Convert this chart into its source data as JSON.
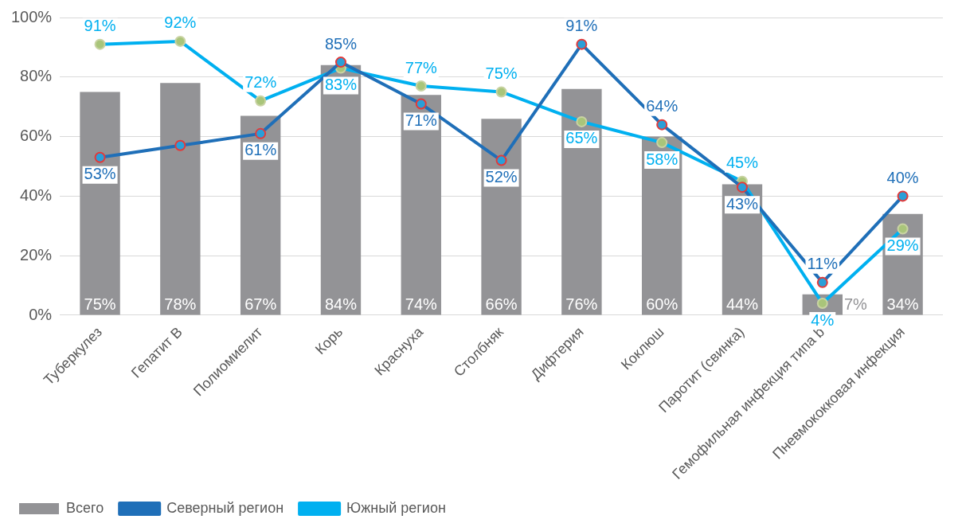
{
  "chart_data": {
    "type": "bar",
    "categories": [
      "Туберкулез",
      "Гепатит B",
      "Полиомиелит",
      "Корь",
      "Краснуха",
      "Столбняк",
      "Дифтерия",
      "Коклюш",
      "Паротит (свинка)",
      "Гемофильная инфекция типа b",
      "Пневмококковая инфекция"
    ],
    "series": [
      {
        "name": "Всего",
        "color": "#939396",
        "values": [
          75,
          78,
          67,
          84,
          74,
          66,
          76,
          60,
          44,
          7,
          34
        ],
        "value_labels": [
          "75%",
          "78%",
          "67%",
          "84%",
          "74%",
          "66%",
          "76%",
          "60%",
          "44%",
          "7%",
          "34%"
        ]
      },
      {
        "name": "Северный регион",
        "type": "line",
        "color": "#1f6fb8",
        "values": [
          53,
          57,
          61,
          85,
          71,
          52,
          91,
          64,
          43,
          11,
          40
        ],
        "value_labels": [
          "53%",
          null,
          "61%",
          "85%",
          "71%",
          "52%",
          "91%",
          "64%",
          "43%",
          "11%",
          "40%"
        ]
      },
      {
        "name": "Южный регион",
        "type": "line",
        "color": "#00b0f0",
        "values": [
          91,
          92,
          72,
          83,
          77,
          75,
          65,
          58,
          45,
          4,
          29
        ],
        "value_labels": [
          "91%",
          "92%",
          "72%",
          "83%",
          "77%",
          "75%",
          "65%",
          "58%",
          "45%",
          "4%",
          "29%"
        ]
      }
    ],
    "ylim": [
      0,
      100
    ],
    "yticks": [
      {
        "value": 0,
        "label": "0%"
      },
      {
        "value": 20,
        "label": "20%"
      },
      {
        "value": 40,
        "label": "40%"
      },
      {
        "value": 60,
        "label": "60%"
      },
      {
        "value": 80,
        "label": "80%"
      },
      {
        "value": 100,
        "label": "100%"
      }
    ],
    "grid": "y",
    "legend": "bottom left",
    "marker": "circle",
    "line_style": "solid"
  }
}
